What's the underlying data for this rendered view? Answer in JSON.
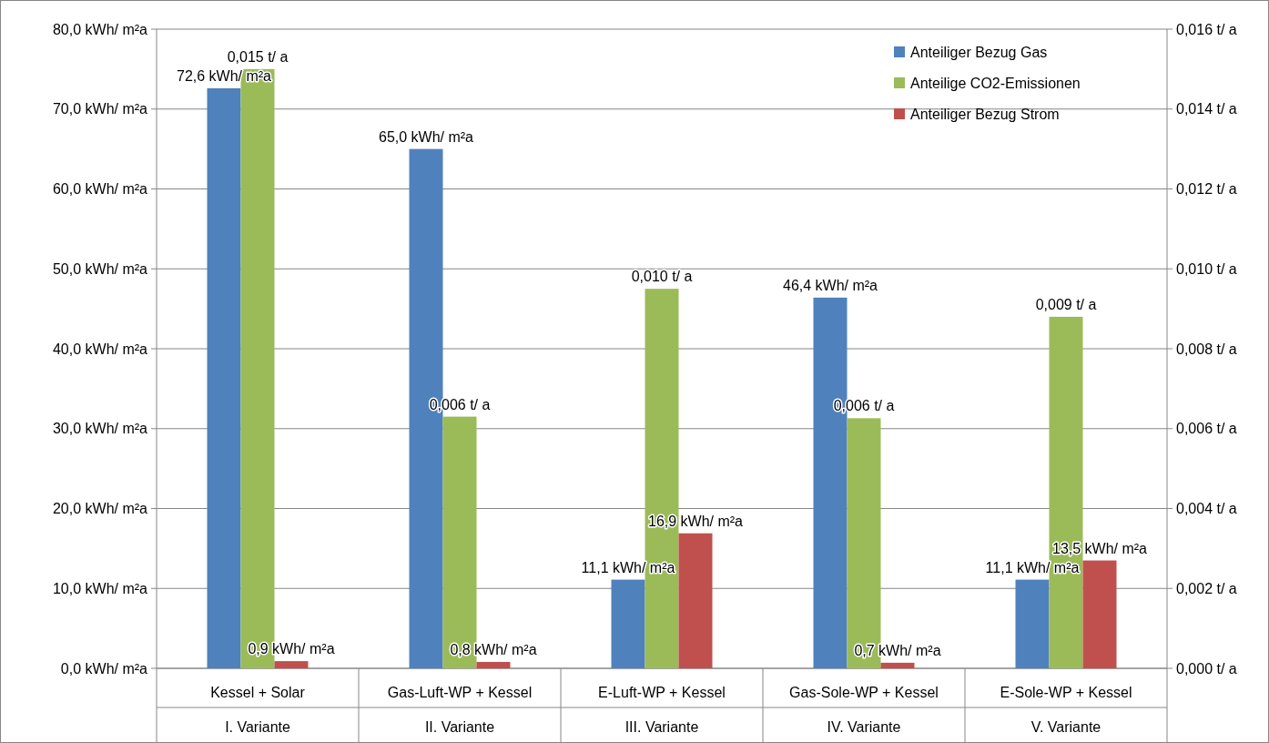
{
  "chart_data": {
    "type": "bar",
    "categories": [
      "Kessel + Solar\nI. Variante",
      "Gas-Luft-WP + Kessel\nII. Variante",
      "E-Luft-WP + Kessel\nIII. Variante",
      "Gas-Sole-WP + Kessel\nIV. Variante",
      "E-Sole-WP + Kessel\nV. Variante"
    ],
    "series": [
      {
        "name": "Anteiliger Bezug Gas",
        "color": "#4f81bd",
        "values": [
          72.6,
          65.0,
          11.1,
          46.4,
          11.1
        ],
        "value_labels": [
          "72,6 kWh/ m²a",
          "65,0 kWh/ m²a",
          "11,1 kWh/ m²a",
          "46,4 kWh/ m²a",
          "11,1 kWh/ m²a"
        ]
      },
      {
        "name": "Anteilige CO2-Emissionen",
        "color": "#9bbb59",
        "axis": "y2",
        "values": [
          0.015,
          0.0063,
          0.0095,
          0.00626,
          0.0088
        ],
        "value_labels": [
          "0,015 t/ a",
          "0,006 t/ a",
          "0,010 t/ a",
          "0,006 t/ a",
          "0,009 t/ a"
        ]
      },
      {
        "name": "Anteiliger Bezug Strom",
        "color": "#c0504d",
        "values": [
          0.9,
          0.8,
          16.9,
          0.7,
          13.5
        ],
        "value_labels": [
          "0,9 kWh/ m²a",
          "0,8 kWh/ m²a",
          "16,9 kWh/ m²a",
          "0,7 kWh/ m²a",
          "13,5 kWh/ m²a"
        ]
      }
    ],
    "ylim": [
      0,
      80
    ],
    "yticks": [
      {
        "value": 0,
        "label": "0,0 kWh/ m²a"
      },
      {
        "value": 10,
        "label": "10,0 kWh/ m²a"
      },
      {
        "value": 20,
        "label": "20,0 kWh/ m²a"
      },
      {
        "value": 30,
        "label": "30,0 kWh/ m²a"
      },
      {
        "value": 40,
        "label": "40,0 kWh/ m²a"
      },
      {
        "value": 50,
        "label": "50,0 kWh/ m²a"
      },
      {
        "value": 60,
        "label": "60,0 kWh/ m²a"
      },
      {
        "value": 70,
        "label": "70,0 kWh/ m²a"
      },
      {
        "value": 80,
        "label": "80,0 kWh/ m²a"
      }
    ],
    "y2lim": [
      0,
      0.016
    ],
    "y2ticks": [
      {
        "value": 0,
        "label": "0,000 t/ a"
      },
      {
        "value": 0.002,
        "label": "0,002 t/ a"
      },
      {
        "value": 0.004,
        "label": "0,004 t/ a"
      },
      {
        "value": 0.006,
        "label": "0,006 t/ a"
      },
      {
        "value": 0.008,
        "label": "0,008 t/ a"
      },
      {
        "value": 0.01,
        "label": "0,010 t/ a"
      },
      {
        "value": 0.012,
        "label": "0,012 t/ a"
      },
      {
        "value": 0.014,
        "label": "0,014 t/ a"
      },
      {
        "value": 0.016,
        "label": "0,016 t/ a"
      }
    ],
    "grid": "y",
    "legend": "top right"
  }
}
